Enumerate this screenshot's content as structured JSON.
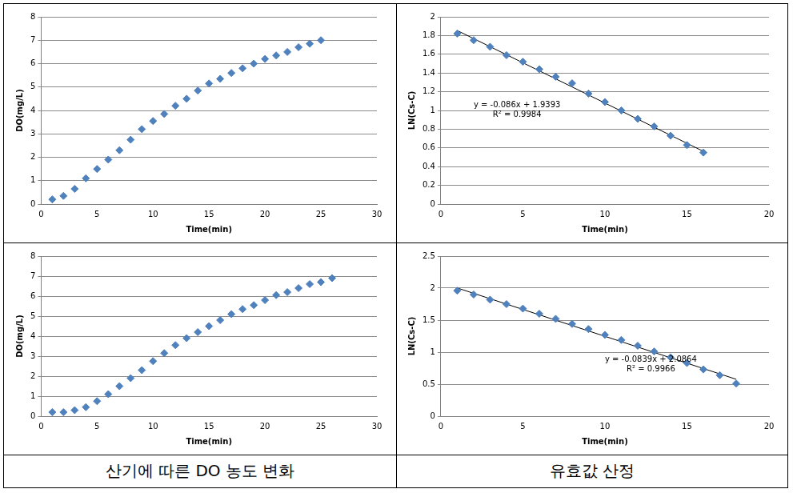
{
  "chart_data": [
    {
      "type": "scatter",
      "x_label": "Time(min)",
      "y_label": "DO(mg/L)",
      "x": [
        1,
        2,
        3,
        4,
        5,
        6,
        7,
        8,
        9,
        10,
        11,
        12,
        13,
        14,
        15,
        16,
        17,
        18,
        19,
        20,
        21,
        22,
        23,
        24,
        25
      ],
      "values": [
        0.2,
        0.35,
        0.65,
        1.1,
        1.5,
        1.9,
        2.3,
        2.75,
        3.2,
        3.55,
        3.85,
        4.2,
        4.5,
        4.85,
        5.15,
        5.35,
        5.6,
        5.8,
        6.0,
        6.2,
        6.35,
        6.5,
        6.7,
        6.85,
        7.0
      ],
      "color": "#4f81bd",
      "marker": "diamond",
      "xlim": [
        0,
        30
      ],
      "xticks": [
        0,
        5,
        10,
        15,
        20,
        25,
        30
      ],
      "ylim": [
        0,
        8
      ],
      "yticks": [
        0,
        1,
        2,
        3,
        4,
        5,
        6,
        7,
        8
      ],
      "grid": true
    },
    {
      "type": "scatter",
      "x_label": "Time(min)",
      "y_label": "LN(Cs-C)",
      "x": [
        1,
        2,
        3,
        4,
        5,
        6,
        7,
        8,
        9,
        10,
        11,
        12,
        13,
        14,
        15,
        16
      ],
      "values": [
        1.82,
        1.75,
        1.68,
        1.59,
        1.52,
        1.44,
        1.36,
        1.29,
        1.18,
        1.09,
        1.0,
        0.91,
        0.83,
        0.73,
        0.63,
        0.55
      ],
      "color": "#4f81bd",
      "marker": "diamond",
      "trendline": {
        "slope": -0.086,
        "intercept": 1.9393,
        "color": "#000000",
        "line_style": "solid"
      },
      "annotations": [
        "y = -0.086x + 1.9393",
        "R² = 0.9984"
      ],
      "xlim": [
        0,
        20
      ],
      "xticks": [
        0,
        5,
        10,
        15,
        20
      ],
      "ylim": [
        0,
        2
      ],
      "yticks": [
        0,
        0.2,
        0.4,
        0.6,
        0.8,
        1,
        1.2,
        1.4,
        1.6,
        1.8,
        2
      ],
      "grid": true
    },
    {
      "type": "scatter",
      "x_label": "Time(min)",
      "y_label": "DO(mg/L)",
      "x": [
        1,
        2,
        3,
        4,
        5,
        6,
        7,
        8,
        9,
        10,
        11,
        12,
        13,
        14,
        15,
        16,
        17,
        18,
        19,
        20,
        21,
        22,
        23,
        24,
        25,
        26
      ],
      "values": [
        0.2,
        0.2,
        0.3,
        0.45,
        0.75,
        1.1,
        1.5,
        1.9,
        2.3,
        2.75,
        3.15,
        3.55,
        3.9,
        4.2,
        4.5,
        4.8,
        5.1,
        5.35,
        5.55,
        5.8,
        6.05,
        6.2,
        6.4,
        6.6,
        6.7,
        6.9
      ],
      "color": "#4f81bd",
      "marker": "diamond",
      "xlim": [
        0,
        30
      ],
      "xticks": [
        0,
        5,
        10,
        15,
        20,
        25,
        30
      ],
      "ylim": [
        0,
        8
      ],
      "yticks": [
        0,
        1,
        2,
        3,
        4,
        5,
        6,
        7,
        8
      ],
      "grid": true
    },
    {
      "type": "scatter",
      "x_label": "Time(min)",
      "y_label": "LN(Cs-C)",
      "x": [
        1,
        2,
        3,
        4,
        5,
        6,
        7,
        8,
        9,
        10,
        11,
        12,
        13,
        14,
        15,
        16,
        17,
        18
      ],
      "values": [
        1.96,
        1.9,
        1.82,
        1.75,
        1.68,
        1.6,
        1.52,
        1.44,
        1.36,
        1.27,
        1.19,
        1.1,
        1.01,
        0.92,
        0.83,
        0.73,
        0.64,
        0.51
      ],
      "color": "#4f81bd",
      "marker": "diamond",
      "trendline": {
        "slope": -0.0839,
        "intercept": 2.0864,
        "color": "#000000",
        "line_style": "solid"
      },
      "annotations": [
        "y = -0.0839x + 2.0864",
        "R² = 0.9966"
      ],
      "xlim": [
        0,
        20
      ],
      "xticks": [
        0,
        5,
        10,
        15,
        20
      ],
      "ylim": [
        0,
        2.5
      ],
      "yticks": [
        0,
        0.5,
        1,
        1.5,
        2,
        2.5
      ],
      "grid": true
    }
  ],
  "captions": [
    "산기에 따른 DO 농도 변화",
    "유효값 산정"
  ]
}
